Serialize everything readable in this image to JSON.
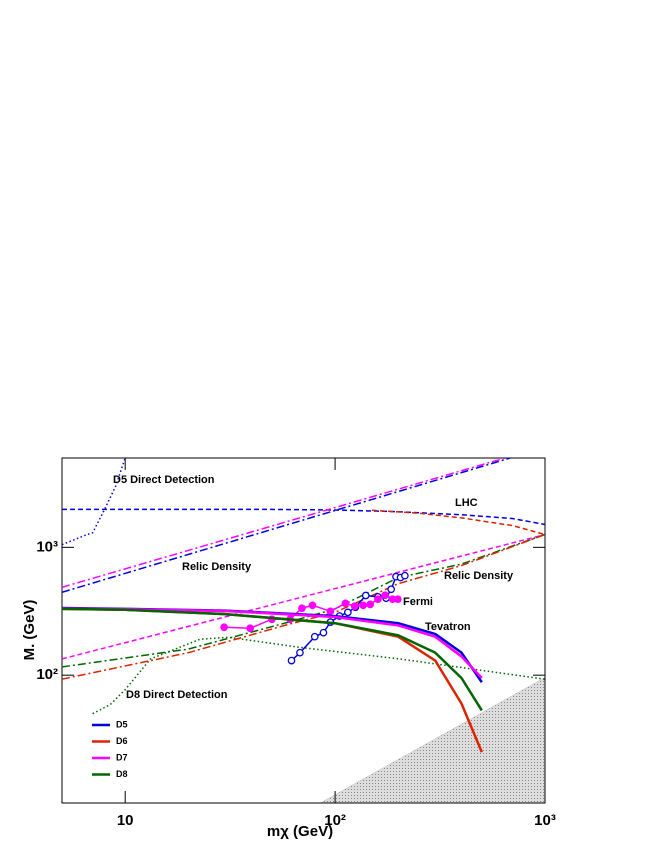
{
  "chart_data": {
    "type": "line",
    "log_x": true,
    "log_y": true,
    "xlim": [
      5,
      1000
    ],
    "ylim": [
      10,
      5000
    ],
    "xticks": [
      10,
      {
        "value": 100,
        "label": "10²"
      },
      {
        "value": 1000,
        "label": "10³"
      }
    ],
    "yticks": [
      {
        "value": 100,
        "label": "10²"
      },
      {
        "value": 1000,
        "label": "10³"
      }
    ],
    "x_label": "mχ (GeV)",
    "y_label": "M. (GeV)",
    "grid": false,
    "legend": "lower left",
    "series": [
      {
        "name": "D5",
        "color": "#0000dd",
        "x": [
          5,
          10,
          30,
          100,
          200,
          300,
          400,
          500
        ],
        "values": [
          335,
          330,
          320,
          290,
          255,
          210,
          150,
          88
        ]
      },
      {
        "name": "D6",
        "color": "#dd2200",
        "x": [
          5,
          10,
          30,
          100,
          200,
          300,
          400,
          500
        ],
        "values": [
          330,
          325,
          300,
          255,
          200,
          130,
          60,
          25
        ]
      },
      {
        "name": "D7",
        "color": "#ff00ff",
        "x": [
          5,
          10,
          30,
          100,
          200,
          300,
          400,
          500
        ],
        "values": [
          332,
          328,
          318,
          285,
          245,
          200,
          140,
          95
        ]
      },
      {
        "name": "D8",
        "color": "#006600",
        "x": [
          5,
          10,
          30,
          100,
          200,
          300,
          400,
          500
        ],
        "values": [
          330,
          325,
          300,
          255,
          205,
          150,
          95,
          53
        ]
      }
    ],
    "lines": [
      {
        "color": "#0000dd",
        "dash": "dotted",
        "x": [
          5,
          6.5,
          7,
          8,
          9,
          10
        ],
        "values": [
          1050,
          1250,
          1300,
          2000,
          3000,
          5000
        ]
      },
      {
        "color": "#006600",
        "dash": "dotted",
        "x": [
          7,
          8.5,
          10,
          13.2,
          22.7,
          31,
          68,
          203,
          1000
        ],
        "values": [
          50,
          59,
          77,
          134,
          191,
          198,
          165,
          134,
          93
        ]
      },
      {
        "color": "#0000dd",
        "dash": "dashed",
        "x": [
          5,
          50,
          100,
          200,
          400,
          700,
          1000
        ],
        "values": [
          1980,
          1980,
          1960,
          1900,
          1800,
          1680,
          1510
        ]
      },
      {
        "color": "#dd2200",
        "dash": "dashed",
        "x": [
          150,
          250,
          400,
          700,
          1000
        ],
        "values": [
          1950,
          1850,
          1700,
          1480,
          1260
        ]
      },
      {
        "color": "#ff00ff",
        "dash": "dashdot",
        "x": [
          5,
          645
        ],
        "values": [
          487,
          5000
        ]
      },
      {
        "color": "#0000dd",
        "dash": "dashdot",
        "x": [
          5,
          683
        ],
        "values": [
          445,
          5000
        ]
      },
      {
        "color": "#ff00ff",
        "dash": "dashed",
        "x": [
          5,
          1000
        ],
        "values": [
          134,
          1260
        ]
      },
      {
        "color": "#006600",
        "dash": "dashdot",
        "x": [
          5,
          20,
          60,
          100,
          200,
          400,
          1000
        ],
        "values": [
          116,
          160,
          260,
          330,
          580,
          740,
          1260
        ]
      },
      {
        "color": "#dd2200",
        "dash": "dashdot",
        "x": [
          5,
          20,
          60,
          100,
          200,
          400,
          1000
        ],
        "values": [
          93,
          150,
          250,
          310,
          520,
          720,
          1260
        ]
      },
      {
        "color": "#0000dd",
        "dash": "solid",
        "marker": "open-circle",
        "x": [
          62,
          68,
          80,
          88,
          95,
          105,
          115,
          125,
          140,
          160,
          175,
          185,
          195,
          205,
          215
        ],
        "values": [
          130,
          150,
          200,
          215,
          260,
          290,
          310,
          340,
          420,
          410,
          400,
          470,
          590,
          580,
          600
        ]
      },
      {
        "color": "#ff00ff",
        "dash": "solid",
        "marker": "filled-circle",
        "x": [
          29.6,
          39.4,
          50,
          61,
          69.5,
          78,
          95,
          112,
          124,
          136,
          147,
          160,
          173,
          188,
          199
        ],
        "values": [
          237,
          233,
          274,
          274,
          334,
          352,
          316,
          365,
          346,
          352,
          358,
          393,
          422,
          393,
          393
        ]
      }
    ],
    "excluded_region": {
      "color": "#bbbbbb",
      "x": [
        85,
        1000
      ],
      "values": [
        10,
        96
      ]
    },
    "annotations": [
      "D5 Direct Detection",
      "LHC",
      "Relic Density",
      "Relic Density",
      "Fermi",
      "Tevatron",
      "D8 Direct Detection"
    ]
  }
}
